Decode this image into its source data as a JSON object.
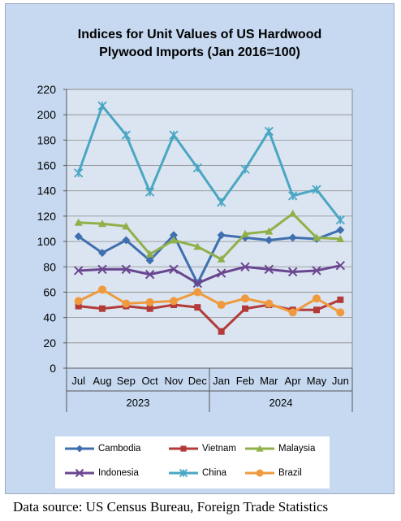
{
  "chart_data": {
    "type": "line",
    "title_lines": [
      "Indices for Unit Values of US Hardwood",
      "Plywood Imports (Jan 2016=100)"
    ],
    "categories": [
      "Jul",
      "Aug",
      "Sep",
      "Oct",
      "Nov",
      "Dec",
      "Jan",
      "Feb",
      "Mar",
      "Apr",
      "May",
      "Jun"
    ],
    "year_groups": [
      {
        "label": "2023",
        "count": 6
      },
      {
        "label": "2024",
        "count": 6
      }
    ],
    "ylim": [
      0,
      220
    ],
    "yticks": [
      0,
      20,
      40,
      60,
      80,
      100,
      120,
      140,
      160,
      180,
      200,
      220
    ],
    "grid": true,
    "legend_position": "bottom",
    "series": [
      {
        "name": "Cambodia",
        "color": "#3f6fae",
        "marker": "diamond",
        "values": [
          104,
          91,
          101,
          85,
          105,
          67,
          105,
          103,
          101,
          103,
          102,
          109
        ]
      },
      {
        "name": "Vietnam",
        "color": "#b23b3a",
        "marker": "square",
        "values": [
          49,
          47,
          49,
          47,
          50,
          48,
          29,
          47,
          50,
          46,
          46,
          54
        ]
      },
      {
        "name": "Malaysia",
        "color": "#90b04a",
        "marker": "triangle",
        "values": [
          115,
          114,
          112,
          90,
          101,
          96,
          86,
          106,
          108,
          122,
          103,
          102
        ]
      },
      {
        "name": "Indonesia",
        "color": "#6a4690",
        "marker": "x",
        "values": [
          77,
          78,
          78,
          74,
          78,
          67,
          75,
          80,
          78,
          76,
          77,
          81
        ]
      },
      {
        "name": "China",
        "color": "#4aa6c3",
        "marker": "star",
        "values": [
          154,
          207,
          184,
          139,
          184,
          158,
          131,
          157,
          187,
          136,
          141,
          117
        ]
      },
      {
        "name": "Brazil",
        "color": "#ef9a3e",
        "marker": "circle",
        "values": [
          53,
          62,
          51,
          52,
          53,
          60,
          50,
          55,
          51,
          44,
          55,
          44
        ]
      }
    ]
  },
  "source_text": "Data source: US Census Bureau, Foreign Trade Statistics"
}
